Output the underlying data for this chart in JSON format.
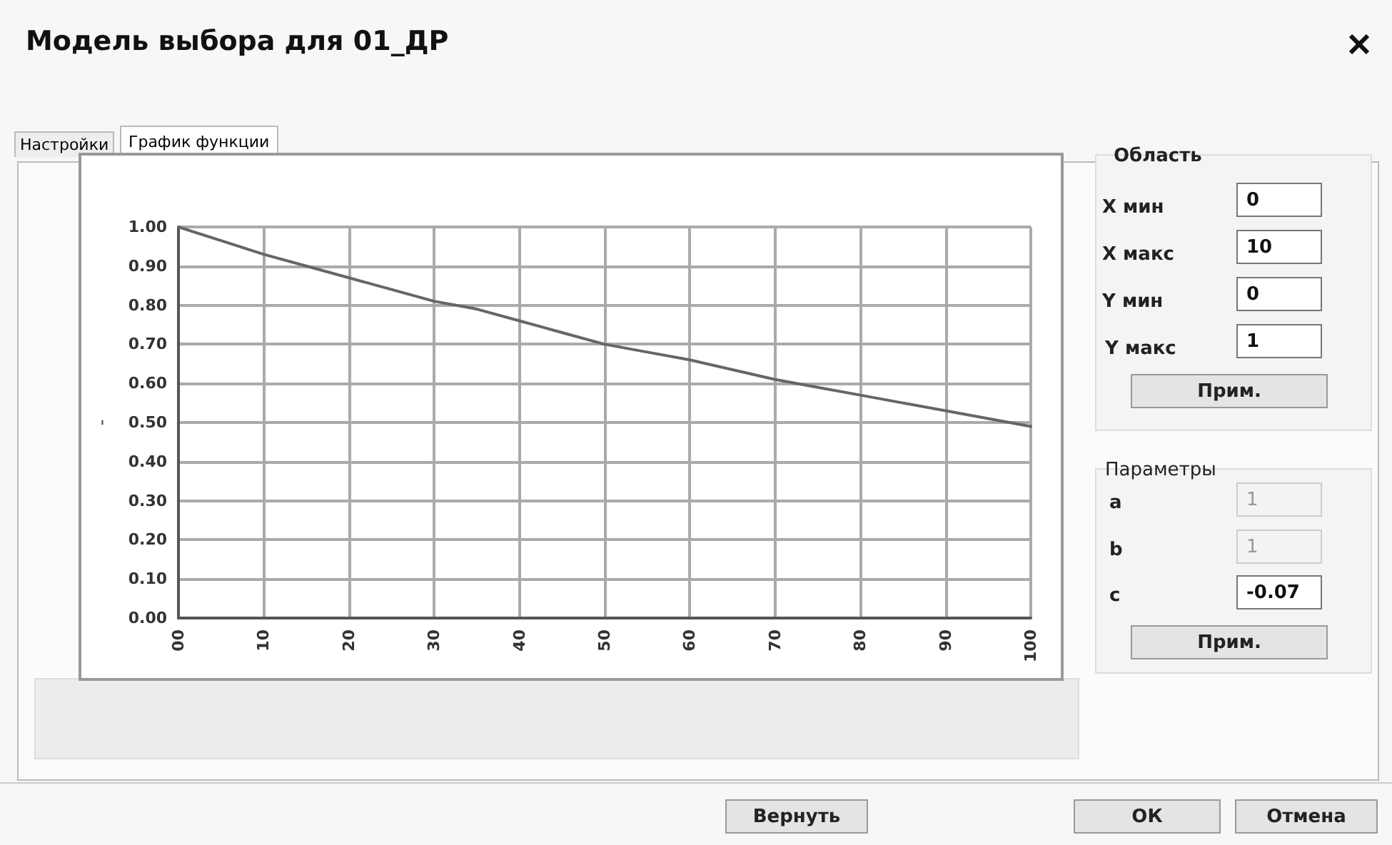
{
  "chart_data": [
    {
      "type": "line",
      "ylabel": "-",
      "x": [
        0,
        5,
        10,
        15,
        20,
        25,
        30,
        35,
        40,
        45,
        50,
        55,
        60,
        65,
        70,
        75,
        80,
        85,
        90,
        95,
        100
      ],
      "series": [
        {
          "color": "#666666",
          "values": [
            1.0,
            0.965,
            0.93,
            0.9,
            0.87,
            0.84,
            0.81,
            0.79,
            0.76,
            0.73,
            0.7,
            0.68,
            0.66,
            0.635,
            0.61,
            0.59,
            0.57,
            0.55,
            0.53,
            0.51,
            0.49
          ]
        }
      ],
      "xlim": [
        0,
        100
      ],
      "ylim": [
        0,
        1
      ],
      "xticks": [
        {
          "value": 0,
          "label": "00"
        },
        10,
        20,
        30,
        40,
        50,
        60,
        70,
        80,
        90,
        100
      ],
      "yticks": [
        {
          "value": 0,
          "label": "0.00"
        },
        {
          "value": 0.1,
          "label": "0.10"
        },
        {
          "value": 0.2,
          "label": "0.20"
        },
        {
          "value": 0.3,
          "label": "0.30"
        },
        {
          "value": 0.4,
          "label": "0.40"
        },
        {
          "value": 0.5,
          "label": "0.50"
        },
        {
          "value": 0.6,
          "label": "0.60"
        },
        {
          "value": 0.7,
          "label": "0.70"
        },
        {
          "value": 0.8,
          "label": "0.80"
        },
        {
          "value": 0.9,
          "label": "0.90"
        },
        {
          "value": 1,
          "label": "1.00"
        }
      ],
      "grid": true,
      "marker": "none",
      "line_style": "solid"
    },
    {
      "type": "other",
      "title": "Модель выбора для 01_ДР",
      "annotations": [
        "Настройки",
        "График функции",
        "Область",
        "X мин",
        "0",
        "X макс",
        "10",
        "Y мин",
        "0",
        "Y макс",
        "1",
        "Прим.",
        "Параметры",
        "a",
        "1",
        "b",
        "1",
        "c",
        "-0.07",
        "Прим.",
        "Вернуть",
        "ОК",
        "Отмена"
      ]
    }
  ]
}
